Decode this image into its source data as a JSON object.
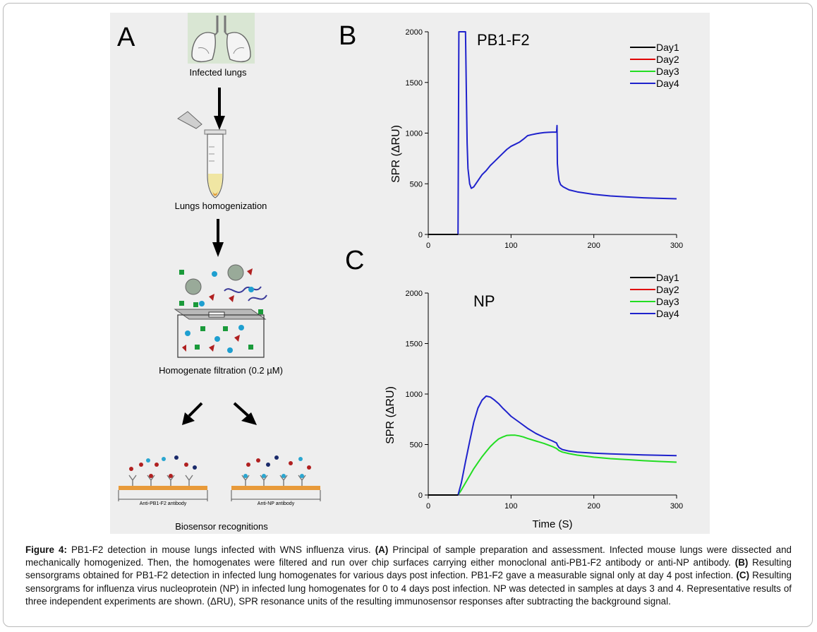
{
  "panel_a": {
    "letter": "A",
    "steps": [
      "Infected lungs",
      "Lungs homogenization",
      "Homogenate filtration (0.2 µM)",
      "Biosensor recognitions"
    ],
    "chip_labels": [
      "Anti-PB1-F2 antibody",
      "Anti-NP antibody"
    ]
  },
  "panel_b": {
    "letter": "B"
  },
  "panel_c": {
    "letter": "C"
  },
  "colors": {
    "day1": "#000000",
    "day2": "#e00000",
    "day3": "#22dd22",
    "day4": "#1f22cc",
    "figure_bg": "#eeeeee"
  },
  "chart_data": [
    {
      "type": "line",
      "title": "PB1-F2",
      "xlabel": "",
      "ylabel": "SPR (ΔRU)",
      "xlim": [
        0,
        300
      ],
      "ylim": [
        0,
        2000
      ],
      "xticks": [
        0,
        100,
        200,
        300
      ],
      "yticks": [
        0,
        500,
        1000,
        1500,
        2000
      ],
      "legend": [
        "Day1",
        "Day2",
        "Day3",
        "Day4"
      ],
      "legend_position": "top-right",
      "series": [
        {
          "name": "Day4",
          "x": [
            0,
            36,
            37,
            38,
            39,
            40,
            41,
            42,
            43,
            44,
            45,
            46,
            47,
            48,
            50,
            52,
            55,
            60,
            65,
            70,
            75,
            80,
            85,
            90,
            95,
            100,
            105,
            110,
            115,
            120,
            125,
            130,
            135,
            140,
            145,
            150,
            155,
            155.5,
            156,
            157,
            158,
            160,
            163,
            170,
            180,
            200,
            220,
            240,
            260,
            280,
            300
          ],
          "y": [
            0,
            0,
            2000,
            2000,
            2000,
            2000,
            2000,
            2000,
            2000,
            2000,
            2000,
            1400,
            900,
            650,
            500,
            455,
            470,
            530,
            590,
            630,
            680,
            720,
            760,
            800,
            840,
            870,
            890,
            910,
            940,
            975,
            985,
            993,
            1000,
            1005,
            1008,
            1010,
            1010,
            1075,
            700,
            600,
            530,
            490,
            470,
            440,
            420,
            395,
            380,
            370,
            362,
            356,
            352
          ]
        },
        {
          "name": "Day3",
          "x": [
            0,
            36
          ],
          "y": [
            0,
            0
          ]
        },
        {
          "name": "Day2",
          "x": [
            0,
            36
          ],
          "y": [
            0,
            0
          ]
        },
        {
          "name": "Day1",
          "x": [
            0,
            36
          ],
          "y": [
            0,
            0
          ]
        }
      ]
    },
    {
      "type": "line",
      "title": "NP",
      "xlabel": "Time (S)",
      "ylabel": "SPR (ΔRU)",
      "xlim": [
        0,
        300
      ],
      "ylim": [
        0,
        2000
      ],
      "xticks": [
        0,
        100,
        200,
        300
      ],
      "yticks": [
        0,
        500,
        1000,
        1500,
        2000
      ],
      "legend": [
        "Day1",
        "Day2",
        "Day3",
        "Day4"
      ],
      "legend_position": "top-right",
      "series": [
        {
          "name": "Day3",
          "x": [
            0,
            36,
            40,
            45,
            50,
            55,
            60,
            65,
            70,
            75,
            80,
            85,
            90,
            95,
            100,
            105,
            110,
            115,
            120,
            130,
            140,
            150,
            155,
            158,
            162,
            170,
            180,
            200,
            220,
            240,
            260,
            280,
            300
          ],
          "y": [
            0,
            0,
            50,
            120,
            190,
            260,
            320,
            380,
            430,
            480,
            520,
            555,
            575,
            590,
            593,
            592,
            585,
            575,
            560,
            535,
            510,
            480,
            460,
            440,
            425,
            410,
            395,
            375,
            360,
            350,
            340,
            332,
            325
          ]
        },
        {
          "name": "Day4",
          "x": [
            0,
            36,
            40,
            45,
            50,
            55,
            60,
            65,
            70,
            75,
            80,
            85,
            90,
            95,
            100,
            110,
            120,
            130,
            140,
            150,
            155,
            156,
            158,
            162,
            170,
            180,
            200,
            220,
            240,
            260,
            280,
            300
          ],
          "y": [
            0,
            0,
            120,
            330,
            530,
            720,
            860,
            940,
            980,
            970,
            940,
            905,
            860,
            820,
            780,
            720,
            660,
            610,
            570,
            535,
            515,
            495,
            470,
            450,
            435,
            425,
            415,
            408,
            402,
            397,
            393,
            390
          ]
        },
        {
          "name": "Day2",
          "x": [
            0,
            36
          ],
          "y": [
            0,
            0
          ]
        },
        {
          "name": "Day1",
          "x": [
            0,
            36
          ],
          "y": [
            0,
            0
          ]
        }
      ]
    }
  ],
  "caption": {
    "figure_label": "Figure 4:",
    "intro": " PB1-F2 detection in mouse lungs infected with WNS influenza virus. ",
    "a_label": "(A)",
    "a_text": " Principal of sample preparation and assessment. Infected mouse lungs were dissected and mechanically homogenized. Then, the homogenates were filtered and run over chip surfaces carrying either monoclonal anti-PB1-F2 antibody or anti-NP antibody. ",
    "b_label": "(B)",
    "b_text": " Resulting sensorgrams obtained for PB1-F2 detection in infected lung homogenates for various days post infection. PB1-F2 gave a measurable signal only at day 4 post infection. ",
    "c_label": "(C)",
    "c_text": " Resulting sensorgrams for influenza virus nucleoprotein (NP) in infected lung homogenates for 0 to 4 days post infection. NP was detected in samples at days 3 and 4. Representative results of three independent experiments are shown. (ΔRU), SPR resonance units of the resulting immunosensor responses after subtracting the background signal."
  }
}
